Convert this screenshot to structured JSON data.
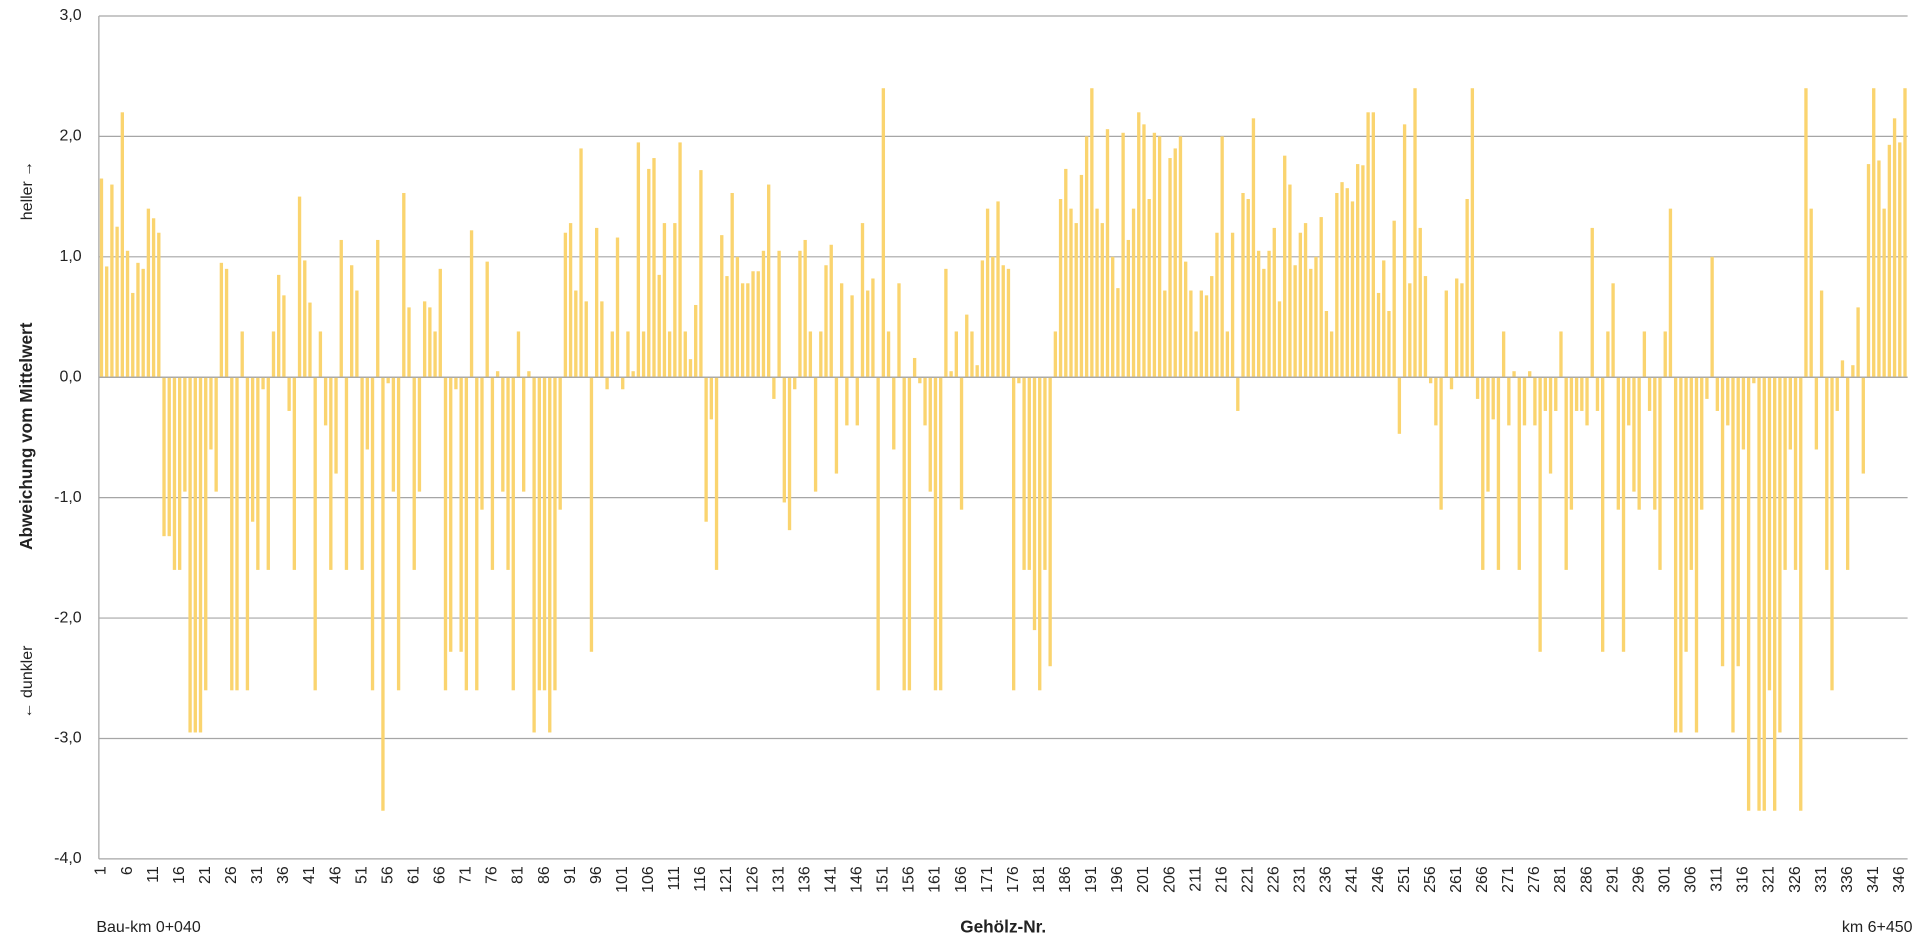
{
  "chart_data": {
    "type": "bar",
    "y_label": "Abweichung vom Mittelwert",
    "y_label_top": "heller →",
    "y_label_bottom": "← dunkler",
    "x_label": "Gehölz-Nr.",
    "x_label_left": "Bau-km 0+040",
    "x_label_right": "km 6+450",
    "color": "#fad46f",
    "grid": true,
    "ylim": [
      -4,
      3
    ],
    "yticks": [
      {
        "value": -4,
        "label": "-4,0"
      },
      {
        "value": -3,
        "label": "-3,0"
      },
      {
        "value": -2,
        "label": "-2,0"
      },
      {
        "value": -1,
        "label": "-1,0"
      },
      {
        "value": 0,
        "label": "0,0"
      },
      {
        "value": 1,
        "label": "1,0"
      },
      {
        "value": 2,
        "label": "2,0"
      },
      {
        "value": 3,
        "label": "3,0"
      }
    ],
    "categories": [
      1,
      null,
      null,
      null,
      null,
      6,
      null,
      null,
      null,
      null,
      11,
      null,
      null,
      null,
      null,
      16,
      null,
      null,
      null,
      null,
      21,
      null,
      null,
      null,
      null,
      26,
      null,
      null,
      null,
      null,
      31,
      null,
      null,
      null,
      null,
      36,
      null,
      null,
      null,
      null,
      41,
      null,
      null,
      null,
      null,
      46,
      null,
      null,
      null,
      null,
      51,
      null,
      null,
      null,
      null,
      56,
      null,
      null,
      null,
      null,
      61,
      null,
      null,
      null,
      null,
      66,
      null,
      null,
      null,
      null,
      71,
      null,
      null,
      null,
      null,
      76,
      null,
      null,
      null,
      null,
      81,
      null,
      null,
      null,
      null,
      86,
      null,
      null,
      null,
      null,
      91,
      null,
      null,
      null,
      null,
      96,
      null,
      null,
      null,
      null,
      101,
      null,
      null,
      null,
      null,
      106,
      null,
      null,
      null,
      null,
      111,
      null,
      null,
      null,
      null,
      116,
      null,
      null,
      null,
      null,
      121,
      null,
      null,
      null,
      null,
      126,
      null,
      null,
      null,
      null,
      131,
      null,
      null,
      null,
      null,
      136,
      null,
      null,
      null,
      null,
      141,
      null,
      null,
      null,
      null,
      146,
      null,
      null,
      null,
      null,
      151,
      null,
      null,
      null,
      null,
      156,
      null,
      null,
      null,
      null,
      161,
      null,
      null,
      null,
      null,
      166,
      null,
      null,
      null,
      null,
      171,
      null,
      null,
      null,
      null,
      176,
      null,
      null,
      null,
      null,
      181,
      null,
      null,
      null,
      null,
      186,
      null,
      null,
      null,
      null,
      191,
      null,
      null,
      null,
      null,
      196,
      null,
      null,
      null,
      null,
      201,
      null,
      null,
      null,
      null,
      206,
      null,
      null,
      null,
      null,
      211,
      null,
      null,
      null,
      null,
      216,
      null,
      null,
      null,
      null,
      221,
      null,
      null,
      null,
      null,
      226,
      null,
      null,
      null,
      null,
      231,
      null,
      null,
      null,
      null,
      236,
      null,
      null,
      null,
      null,
      241,
      null,
      null,
      null,
      null,
      246,
      null,
      null,
      null,
      null,
      251,
      null,
      null,
      null,
      null,
      256,
      null,
      null,
      null,
      null,
      261,
      null,
      null,
      null,
      null,
      266,
      null,
      null,
      null,
      null,
      271,
      null,
      null,
      null,
      null,
      276,
      null,
      null,
      null,
      null,
      281,
      null,
      null,
      null,
      null,
      286,
      null,
      null,
      null,
      null,
      291,
      null,
      null,
      null,
      null,
      296,
      null,
      null,
      null,
      null,
      301,
      null,
      null,
      null,
      null,
      306,
      null,
      null,
      null,
      null,
      311,
      null,
      null,
      null,
      null,
      316,
      null,
      null,
      null,
      null,
      321,
      null,
      null,
      null,
      null,
      326,
      null,
      null,
      null,
      null,
      331,
      null,
      null,
      null,
      null,
      336,
      null,
      null,
      null,
      null,
      341,
      null,
      null,
      null,
      null,
      346,
      null
    ],
    "values": [
      1.65,
      0.92,
      1.6,
      1.25,
      2.2,
      1.05,
      0.7,
      0.95,
      0.9,
      1.4,
      1.32,
      1.2,
      -1.32,
      -1.32,
      -1.6,
      -1.6,
      -0.95,
      -2.95,
      -2.95,
      -2.95,
      -2.6,
      -0.6,
      -0.95,
      0.95,
      0.9,
      -2.6,
      -2.6,
      0.38,
      -2.6,
      -1.2,
      -1.6,
      -0.1,
      -1.6,
      0.38,
      0.85,
      0.68,
      -0.28,
      -1.6,
      1.5,
      0.97,
      0.62,
      -2.6,
      0.38,
      -0.4,
      -1.6,
      -0.8,
      1.14,
      -1.6,
      0.93,
      0.72,
      -1.6,
      -0.6,
      -2.6,
      1.14,
      -3.6,
      -0.05,
      -0.95,
      -2.6,
      1.53,
      0.58,
      -1.6,
      -0.95,
      0.63,
      0.58,
      0.38,
      0.9,
      -2.6,
      -2.28,
      -0.1,
      -2.28,
      -2.6,
      1.22,
      -2.6,
      -1.1,
      0.96,
      -1.6,
      0.05,
      -0.95,
      -1.6,
      -2.6,
      0.38,
      -0.95,
      0.05,
      -2.95,
      -2.6,
      -2.6,
      -2.95,
      -2.6,
      -1.1,
      1.2,
      1.28,
      0.72,
      1.9,
      0.63,
      -2.28,
      1.24,
      0.63,
      -0.1,
      0.38,
      1.16,
      -0.1,
      0.38,
      0.05,
      1.95,
      0.38,
      1.73,
      1.82,
      0.85,
      1.28,
      0.38,
      1.28,
      1.95,
      0.38,
      0.15,
      0.6,
      1.72,
      -1.2,
      -0.35,
      -1.6,
      1.18,
      0.84,
      1.53,
      1.0,
      0.78,
      0.78,
      0.88,
      0.88,
      1.05,
      1.6,
      -0.18,
      1.05,
      -1.04,
      -1.27,
      -0.1,
      1.05,
      1.14,
      0.38,
      -0.95,
      0.38,
      0.93,
      1.1,
      -0.8,
      0.78,
      -0.4,
      0.68,
      -0.4,
      1.28,
      0.72,
      0.82,
      -2.6,
      2.4,
      0.38,
      -0.6,
      0.78,
      -2.6,
      -2.6,
      0.16,
      -0.05,
      -0.4,
      -0.95,
      -2.6,
      -2.6,
      0.9,
      0.05,
      0.38,
      -1.1,
      0.52,
      0.38,
      0.1,
      0.97,
      1.4,
      1.0,
      1.46,
      0.93,
      0.9,
      -2.6,
      -0.05,
      -1.6,
      -1.6,
      -2.1,
      -2.6,
      -1.6,
      -2.4,
      0.38,
      1.48,
      1.73,
      1.4,
      1.28,
      1.68,
      2.0,
      2.4,
      1.4,
      1.28,
      2.06,
      1.0,
      0.74,
      2.03,
      1.14,
      1.4,
      2.2,
      2.1,
      1.48,
      2.03,
      2.0,
      0.72,
      1.82,
      1.9,
      2.0,
      0.96,
      0.72,
      0.38,
      0.72,
      0.68,
      0.84,
      1.2,
      2.0,
      0.38,
      1.2,
      -0.28,
      1.53,
      1.48,
      2.15,
      1.05,
      0.9,
      1.05,
      1.24,
      0.63,
      1.84,
      1.6,
      0.93,
      1.2,
      1.28,
      0.9,
      1.0,
      1.33,
      0.55,
      0.38,
      1.53,
      1.62,
      1.57,
      1.46,
      1.77,
      1.76,
      2.2,
      2.2,
      0.7,
      0.97,
      0.55,
      1.3,
      -0.47,
      2.1,
      0.78,
      2.4,
      1.24,
      0.84,
      -0.05,
      -0.4,
      -1.1,
      0.72,
      -0.1,
      0.82,
      0.78,
      1.48,
      2.4,
      -0.18,
      -1.6,
      -0.95,
      -0.35,
      -1.6,
      0.38,
      -0.4,
      0.05,
      -1.6,
      -0.4,
      0.05,
      -0.4,
      -2.28,
      -0.28,
      -0.8,
      -0.28,
      0.38,
      -1.6,
      -1.1,
      -0.28,
      -0.28,
      -0.4,
      1.24,
      -0.28,
      -2.28,
      0.38,
      0.78,
      -1.1,
      -2.28,
      -0.4,
      -0.95,
      -1.1,
      0.38,
      -0.28,
      -1.1,
      -1.6,
      0.38,
      1.4,
      -2.95,
      -2.95,
      -2.28,
      -1.6,
      -2.95,
      -1.1,
      -0.18,
      1.0,
      -0.28,
      -2.4,
      -0.4,
      -2.95,
      -2.4,
      -0.6,
      -3.6,
      -0.05,
      -3.6,
      -3.6,
      -2.6,
      -3.6,
      -2.95,
      -1.6,
      -0.6,
      -1.6,
      -3.6,
      2.4,
      1.4,
      -0.6,
      0.72,
      -1.6,
      -2.6,
      -0.28,
      0.14,
      -1.6,
      0.1,
      0.58,
      -0.8,
      1.77,
      2.4,
      1.8,
      1.4,
      1.93,
      2.15,
      1.95,
      2.4
    ]
  }
}
